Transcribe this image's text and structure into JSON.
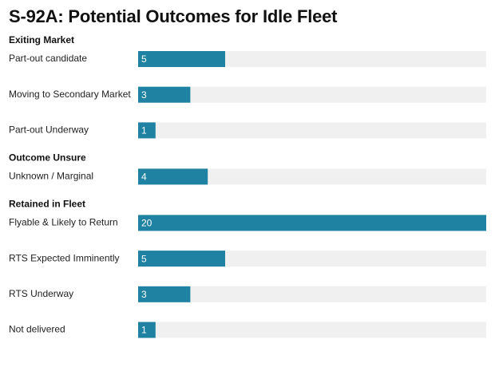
{
  "chart_data": {
    "type": "bar",
    "orientation": "horizontal",
    "title": "S-92A: Potential Outcomes for Idle Fleet",
    "xlim": [
      0,
      20
    ],
    "grid": false,
    "value_labels": "inside-left",
    "colors": {
      "bar": "#1f82a3",
      "track": "#f0f0f0",
      "value_label": "#ffffff",
      "group_label": "#111111",
      "category_label": "#222222"
    },
    "groups": [
      {
        "name": "Exiting Market",
        "categories": [
          "Part-out candidate",
          "Moving to Secondary Market",
          "Part-out Underway"
        ],
        "values": [
          5,
          3,
          1
        ]
      },
      {
        "name": "Outcome Unsure",
        "categories": [
          "Unknown / Marginal"
        ],
        "values": [
          4
        ]
      },
      {
        "name": "Retained in Fleet",
        "categories": [
          "Flyable & Likely to Return",
          "RTS Expected Imminently",
          "RTS Underway",
          "Not delivered"
        ],
        "values": [
          20,
          5,
          3,
          1
        ]
      }
    ]
  }
}
